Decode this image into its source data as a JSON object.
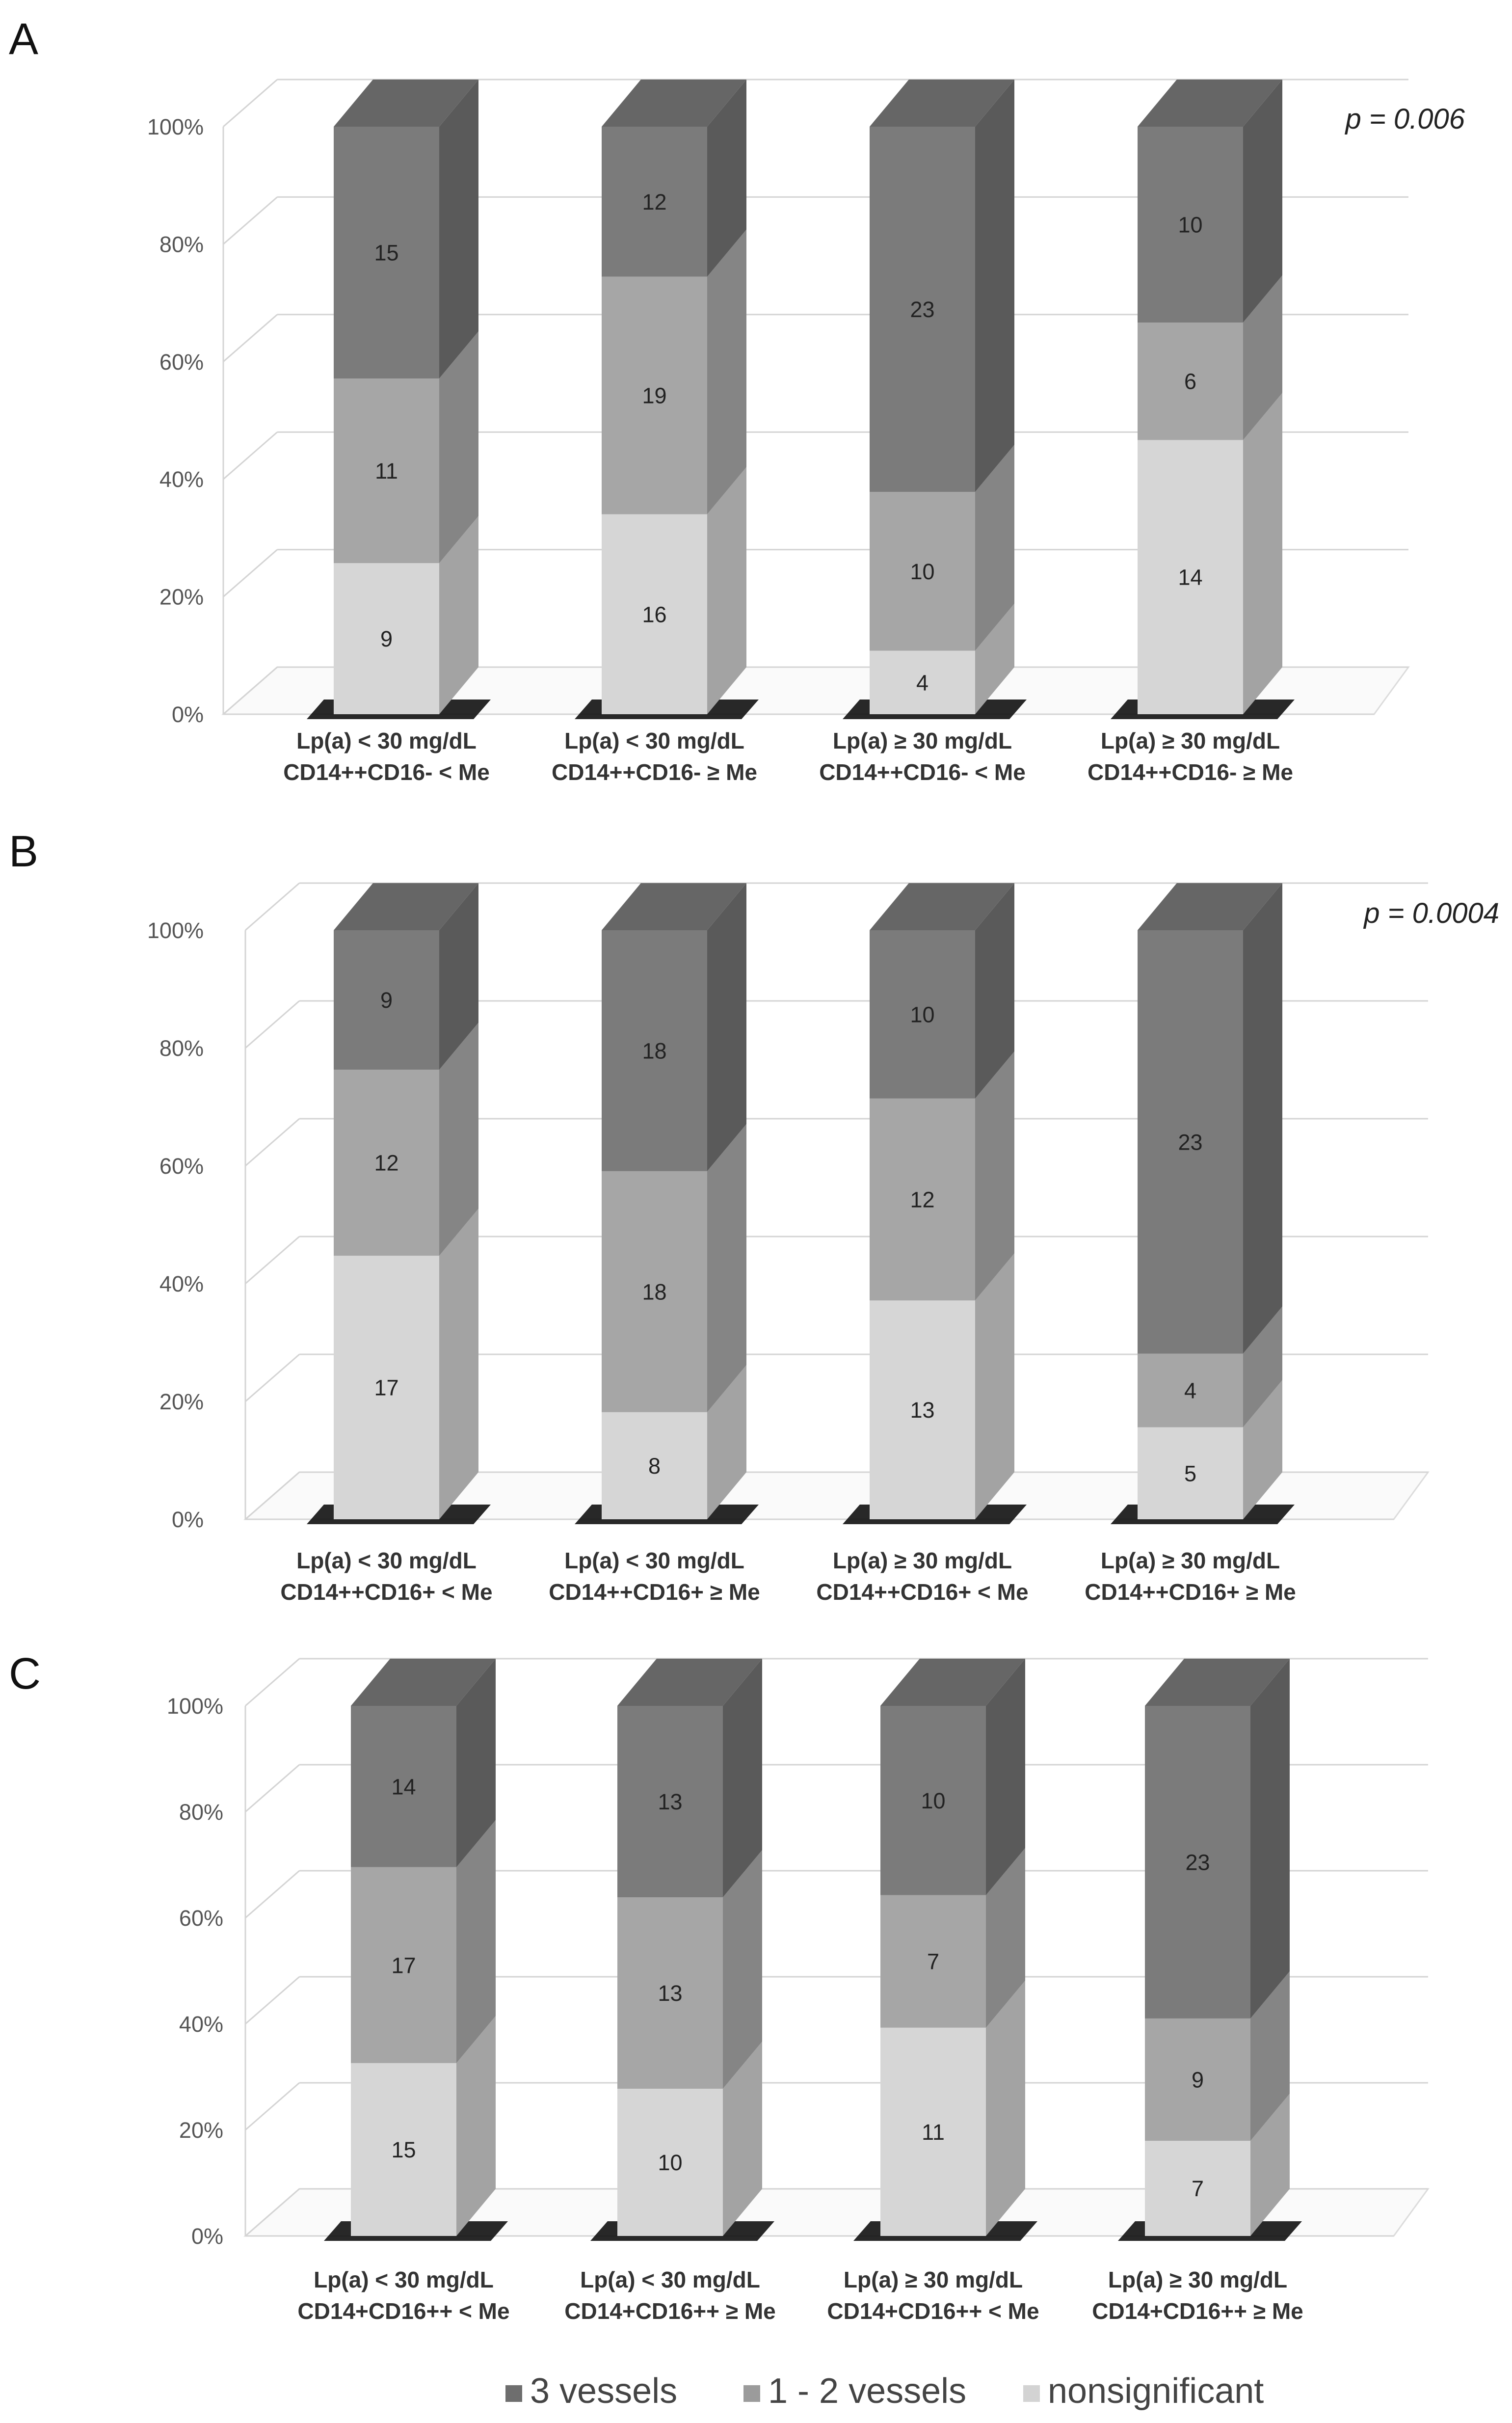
{
  "legend": {
    "items": [
      {
        "label": "3 vessels",
        "color": "#6e6e6e"
      },
      {
        "label": "1 - 2 vessels",
        "color": "#9b9b9b"
      },
      {
        "label": "nonsignificant",
        "color": "#d3d3d3"
      }
    ]
  },
  "series_colors": {
    "three": {
      "front": "#7b7b7b",
      "side": "#5a5a5a",
      "top": "#666666"
    },
    "one_two": {
      "front": "#a6a6a6",
      "side": "#858585",
      "top": "#959595"
    },
    "nonsig": {
      "front": "#d6d6d6",
      "side": "#a3a3a3",
      "top": "#c4c4c4"
    }
  },
  "chart_data": [
    {
      "panel": "A",
      "type": "bar",
      "stacked": "percent",
      "annotation": "p = 0.006",
      "y_ticks": [
        "0%",
        "20%",
        "40%",
        "60%",
        "80%",
        "100%"
      ],
      "ylim": [
        0,
        100
      ],
      "categories": [
        [
          "Lp(a) < 30 mg/dL",
          "CD14++CD16- < Me"
        ],
        [
          "Lp(a) < 30 mg/dL",
          "CD14++CD16- ≥ Me"
        ],
        [
          "Lp(a) ≥ 30 mg/dL",
          "CD14++CD16- < Me"
        ],
        [
          "Lp(a) ≥ 30 mg/dL",
          "CD14++CD16- ≥ Me"
        ]
      ],
      "series": [
        {
          "name": "nonsignificant",
          "values": [
            9,
            16,
            4,
            14
          ]
        },
        {
          "name": "1 - 2 vessels",
          "values": [
            11,
            19,
            10,
            6
          ]
        },
        {
          "name": "3 vessels",
          "values": [
            15,
            12,
            23,
            10
          ]
        }
      ]
    },
    {
      "panel": "B",
      "type": "bar",
      "stacked": "percent",
      "annotation": "p = 0.0004",
      "y_ticks": [
        "0%",
        "20%",
        "40%",
        "60%",
        "80%",
        "100%"
      ],
      "ylim": [
        0,
        100
      ],
      "categories": [
        [
          "Lp(a) < 30 mg/dL",
          "CD14++CD16+ < Me"
        ],
        [
          "Lp(a) < 30 mg/dL",
          "CD14++CD16+ ≥ Me"
        ],
        [
          "Lp(a) ≥ 30 mg/dL",
          "CD14++CD16+ < Me"
        ],
        [
          "Lp(a) ≥ 30 mg/dL",
          "CD14++CD16+ ≥ Me"
        ]
      ],
      "series": [
        {
          "name": "nonsignificant",
          "values": [
            17,
            8,
            13,
            5
          ]
        },
        {
          "name": "1 - 2 vessels",
          "values": [
            12,
            18,
            12,
            4
          ]
        },
        {
          "name": "3 vessels",
          "values": [
            9,
            18,
            10,
            23
          ]
        }
      ]
    },
    {
      "panel": "C",
      "type": "bar",
      "stacked": "percent",
      "annotation": "",
      "y_ticks": [
        "0%",
        "20%",
        "40%",
        "60%",
        "80%",
        "100%"
      ],
      "ylim": [
        0,
        100
      ],
      "categories": [
        [
          "Lp(a) < 30 mg/dL",
          "CD14+CD16++ < Me"
        ],
        [
          "Lp(a) < 30 mg/dL",
          "CD14+CD16++ ≥ Me"
        ],
        [
          "Lp(a) ≥ 30 mg/dL",
          "CD14+CD16++ < Me"
        ],
        [
          "Lp(a) ≥ 30 mg/dL",
          "CD14+CD16++ ≥ Me"
        ]
      ],
      "series": [
        {
          "name": "nonsignificant",
          "values": [
            15,
            10,
            11,
            7
          ]
        },
        {
          "name": "1 - 2 vessels",
          "values": [
            17,
            13,
            7,
            9
          ]
        },
        {
          "name": "3 vessels",
          "values": [
            14,
            13,
            10,
            23
          ]
        }
      ]
    }
  ]
}
